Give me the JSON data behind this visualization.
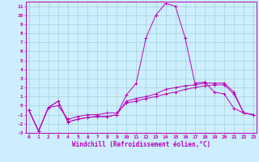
{
  "xlabel": "Windchill (Refroidissement éolien,°C)",
  "background_color": "#cceeff",
  "line_color": "#bb00bb",
  "grid_color": "#99cccc",
  "x_values": [
    0,
    1,
    2,
    3,
    4,
    5,
    6,
    7,
    8,
    9,
    10,
    11,
    12,
    13,
    14,
    15,
    16,
    17,
    18,
    19,
    20,
    21,
    22,
    23
  ],
  "line1": [
    -0.5,
    -2.8,
    -0.2,
    0.5,
    -1.8,
    -1.5,
    -1.3,
    -1.2,
    -1.2,
    -1.0,
    1.2,
    2.5,
    7.5,
    10.0,
    11.3,
    11.0,
    7.5,
    2.5,
    2.6,
    1.5,
    1.3,
    -0.3,
    -0.8,
    -1.0
  ],
  "line2": [
    -0.5,
    -2.8,
    -0.2,
    0.5,
    -1.8,
    -1.5,
    -1.3,
    -1.2,
    -1.2,
    -1.0,
    0.5,
    0.8,
    1.0,
    1.3,
    1.8,
    2.0,
    2.2,
    2.3,
    2.5,
    2.5,
    2.5,
    1.5,
    -0.8,
    -1.0
  ],
  "line3": [
    -0.5,
    -2.8,
    -0.2,
    0.0,
    -1.5,
    -1.2,
    -1.0,
    -1.0,
    -0.8,
    -0.8,
    0.3,
    0.5,
    0.8,
    1.0,
    1.3,
    1.5,
    1.8,
    2.0,
    2.2,
    2.3,
    2.3,
    1.3,
    -0.8,
    -1.0
  ],
  "ylim": [
    -3,
    11.5
  ],
  "xlim": [
    -0.3,
    23.3
  ],
  "ytick_vals": [
    11,
    10,
    9,
    8,
    7,
    6,
    5,
    4,
    3,
    2,
    1,
    0,
    -1,
    -2,
    -3
  ],
  "xtick_labels": [
    "0",
    "1",
    "2",
    "3",
    "4",
    "5",
    "6",
    "7",
    "8",
    "9",
    "10",
    "11",
    "12",
    "13",
    "14",
    "15",
    "16",
    "17",
    "18",
    "19",
    "20",
    "21",
    "22",
    "23"
  ]
}
